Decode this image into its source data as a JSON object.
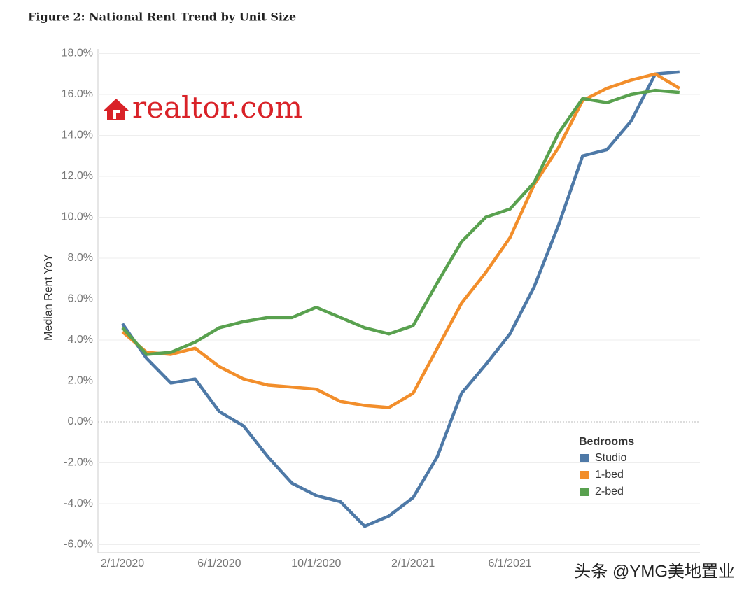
{
  "chart_data": {
    "type": "line",
    "title": "Figure 2: National Rent Trend by Unit Size",
    "logo": "realtor.com",
    "watermark": "头条 @YMG美地置业",
    "y_label": "Median Rent YoY",
    "legend_title": "Bedrooms",
    "categories": [
      "2/1/2020",
      null,
      null,
      null,
      "6/1/2020",
      null,
      null,
      null,
      "10/1/2020",
      null,
      null,
      null,
      "2/1/2021",
      null,
      null,
      null,
      "6/1/2021",
      null,
      null,
      null,
      null,
      null,
      null,
      null
    ],
    "series": [
      {
        "name": "Studio",
        "color": "#4e79a7",
        "values": [
          4.8,
          3.1,
          1.9,
          2.1,
          0.5,
          -0.2,
          -1.7,
          -3.0,
          -3.6,
          -3.9,
          -5.1,
          -4.6,
          -3.7,
          -1.7,
          1.4,
          2.8,
          4.3,
          6.6,
          9.6,
          13.0,
          13.3,
          14.7,
          17.0,
          17.1
        ]
      },
      {
        "name": "1-bed",
        "color": "#f28e2b",
        "values": [
          4.4,
          3.4,
          3.3,
          3.6,
          2.7,
          2.1,
          1.8,
          1.7,
          1.6,
          1.0,
          0.8,
          0.7,
          1.4,
          3.6,
          5.8,
          7.3,
          9.0,
          11.6,
          13.4,
          15.7,
          16.3,
          16.7,
          17.0,
          16.3
        ]
      },
      {
        "name": "2-bed",
        "color": "#59a14f",
        "values": [
          4.6,
          3.3,
          3.4,
          3.9,
          4.6,
          4.9,
          5.1,
          5.1,
          5.6,
          5.1,
          4.6,
          4.3,
          4.7,
          6.8,
          8.8,
          10.0,
          10.4,
          11.7,
          14.1,
          15.8,
          15.6,
          16.0,
          16.2,
          16.1
        ]
      }
    ],
    "ylim": [
      -6.5,
      18.5
    ],
    "yticks": [
      {
        "value": 18,
        "label": "18.0%"
      },
      {
        "value": 16,
        "label": "16.0%"
      },
      {
        "value": 14,
        "label": "14.0%"
      },
      {
        "value": 12,
        "label": "12.0%"
      },
      {
        "value": 10,
        "label": "10.0%"
      },
      {
        "value": 8,
        "label": "8.0%"
      },
      {
        "value": 6,
        "label": "6.0%"
      },
      {
        "value": 4,
        "label": "4.0%"
      },
      {
        "value": 2,
        "label": "2.0%"
      },
      {
        "value": 0,
        "label": "0.0%"
      },
      {
        "value": -2,
        "label": "-2.0%"
      },
      {
        "value": -4,
        "label": "-4.0%"
      },
      {
        "value": -6,
        "label": "-6.0%"
      }
    ],
    "grid": true
  }
}
